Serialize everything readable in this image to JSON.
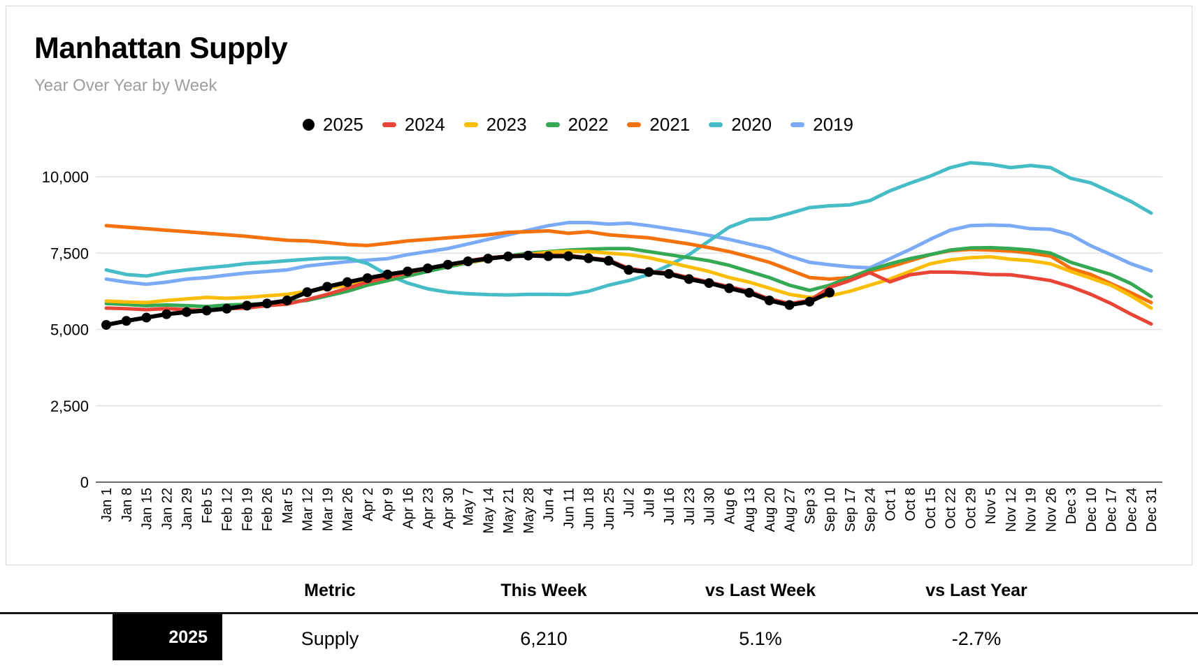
{
  "header": {
    "title": "Manhattan Supply",
    "subtitle": "Year Over Year by Week"
  },
  "chart_data": {
    "type": "line",
    "title": "Manhattan Supply",
    "subtitle": "Year Over Year by Week",
    "legend_position": "top",
    "grid": true,
    "ylim": [
      0,
      10500
    ],
    "y_ticks": [
      0,
      2500,
      5000,
      7500,
      10000
    ],
    "y_tick_labels": [
      "0",
      "2,500",
      "5,000",
      "7,500",
      "10,000"
    ],
    "x_tick_labels": [
      "Jan 1",
      "Jan 8",
      "Jan 15",
      "Jan 22",
      "Jan 29",
      "Feb 5",
      "Feb 12",
      "Feb 19",
      "Feb 26",
      "Mar 5",
      "Mar 12",
      "Mar 19",
      "Mar 26",
      "Apr 2",
      "Apr 9",
      "Apr 16",
      "Apr 23",
      "Apr 30",
      "May 7",
      "May 14",
      "May 21",
      "May 28",
      "Jun 4",
      "Jun 11",
      "Jun 18",
      "Jun 25",
      "Jul 2",
      "Jul 9",
      "Jul 16",
      "Jul 23",
      "Jul 30",
      "Aug 6",
      "Aug 13",
      "Aug 20",
      "Aug 27",
      "Sep 3",
      "Sep 10",
      "Sep 17",
      "Sep 24",
      "Oct 1",
      "Oct 8",
      "Oct 15",
      "Oct 22",
      "Oct 29",
      "Nov 5",
      "Nov 12",
      "Nov 19",
      "Nov 26",
      "Dec 3",
      "Dec 10",
      "Dec 17",
      "Dec 24",
      "Dec 31"
    ],
    "series": [
      {
        "name": "2025",
        "color": "#000000",
        "marker": true,
        "values": [
          5150,
          5280,
          5390,
          5500,
          5570,
          5620,
          5680,
          5780,
          5850,
          5950,
          6220,
          6400,
          6550,
          6680,
          6800,
          6900,
          7000,
          7120,
          7230,
          7320,
          7390,
          7420,
          7400,
          7400,
          7330,
          7250,
          6950,
          6880,
          6820,
          6650,
          6520,
          6350,
          6200,
          5950,
          5800,
          5910,
          6210
        ]
      },
      {
        "name": "2024",
        "color": "#E94537",
        "marker": false,
        "values": [
          5700,
          5680,
          5650,
          5680,
          5650,
          5620,
          5680,
          5700,
          5780,
          5830,
          5980,
          6150,
          6350,
          6550,
          6700,
          6850,
          7000,
          7100,
          7250,
          7350,
          7400,
          7450,
          7430,
          7430,
          7350,
          7280,
          7000,
          6900,
          6850,
          6700,
          6550,
          6400,
          6250,
          6000,
          5850,
          5950,
          6380,
          6600,
          6860,
          6560,
          6790,
          6880,
          6880,
          6850,
          6800,
          6790,
          6700,
          6600,
          6400,
          6150,
          5850,
          5500,
          5180
        ]
      },
      {
        "name": "2023",
        "color": "#FBBC04",
        "marker": false,
        "values": [
          5930,
          5900,
          5880,
          5950,
          6000,
          6050,
          6020,
          6050,
          6100,
          6150,
          6250,
          6350,
          6450,
          6550,
          6700,
          6850,
          7000,
          7100,
          7200,
          7300,
          7400,
          7450,
          7530,
          7560,
          7550,
          7500,
          7450,
          7350,
          7200,
          7050,
          6900,
          6700,
          6550,
          6350,
          6150,
          6050,
          6100,
          6250,
          6450,
          6650,
          6900,
          7150,
          7280,
          7350,
          7380,
          7300,
          7250,
          7150,
          6900,
          6680,
          6450,
          6100,
          5700
        ]
      },
      {
        "name": "2022",
        "color": "#34A853",
        "marker": false,
        "values": [
          5850,
          5820,
          5780,
          5800,
          5780,
          5750,
          5800,
          5820,
          5850,
          5900,
          5950,
          6100,
          6250,
          6450,
          6600,
          6750,
          6900,
          7050,
          7180,
          7300,
          7400,
          7500,
          7550,
          7600,
          7630,
          7650,
          7650,
          7550,
          7450,
          7350,
          7250,
          7100,
          6900,
          6700,
          6450,
          6280,
          6450,
          6700,
          6950,
          7150,
          7320,
          7450,
          7600,
          7670,
          7680,
          7650,
          7600,
          7500,
          7200,
          7000,
          6800,
          6500,
          6080
        ]
      },
      {
        "name": "2021",
        "color": "#F4710C",
        "marker": false,
        "values": [
          8400,
          8350,
          8300,
          8250,
          8200,
          8150,
          8100,
          8050,
          7980,
          7920,
          7900,
          7850,
          7780,
          7750,
          7820,
          7900,
          7950,
          8000,
          8050,
          8100,
          8180,
          8200,
          8230,
          8150,
          8200,
          8100,
          8050,
          8000,
          7900,
          7800,
          7680,
          7550,
          7380,
          7200,
          6950,
          6700,
          6650,
          6700,
          6900,
          7050,
          7250,
          7450,
          7580,
          7620,
          7600,
          7570,
          7500,
          7400,
          7000,
          6800,
          6500,
          6200,
          5880
        ]
      },
      {
        "name": "2020",
        "color": "#46BDC6",
        "marker": false,
        "values": [
          6950,
          6800,
          6750,
          6870,
          6950,
          7020,
          7080,
          7160,
          7200,
          7250,
          7300,
          7340,
          7340,
          7160,
          6790,
          6520,
          6330,
          6220,
          6170,
          6140,
          6130,
          6150,
          6150,
          6140,
          6250,
          6450,
          6600,
          6800,
          7100,
          7450,
          7900,
          8350,
          8600,
          8620,
          8800,
          8990,
          9050,
          9080,
          9220,
          9540,
          9790,
          10020,
          10300,
          10460,
          10410,
          10300,
          10370,
          10300,
          9950,
          9800,
          9500,
          9190,
          8810
        ]
      },
      {
        "name": "2019",
        "color": "#7BAAF7",
        "marker": false,
        "values": [
          6650,
          6550,
          6480,
          6550,
          6650,
          6700,
          6780,
          6850,
          6900,
          6950,
          7080,
          7150,
          7220,
          7270,
          7320,
          7450,
          7550,
          7650,
          7800,
          7950,
          8100,
          8250,
          8400,
          8500,
          8500,
          8450,
          8480,
          8400,
          8300,
          8200,
          8080,
          7950,
          7800,
          7650,
          7400,
          7200,
          7120,
          7050,
          7020,
          7320,
          7620,
          7950,
          8250,
          8400,
          8420,
          8400,
          8300,
          8280,
          8100,
          7740,
          7450,
          7150,
          6920
        ]
      }
    ]
  },
  "table": {
    "row_label": "2025",
    "columns": [
      "Metric",
      "This Week",
      "vs Last Week",
      "vs Last Year"
    ],
    "rows": [
      [
        "Supply",
        "6,210",
        "5.1%",
        "-2.7%"
      ]
    ]
  }
}
